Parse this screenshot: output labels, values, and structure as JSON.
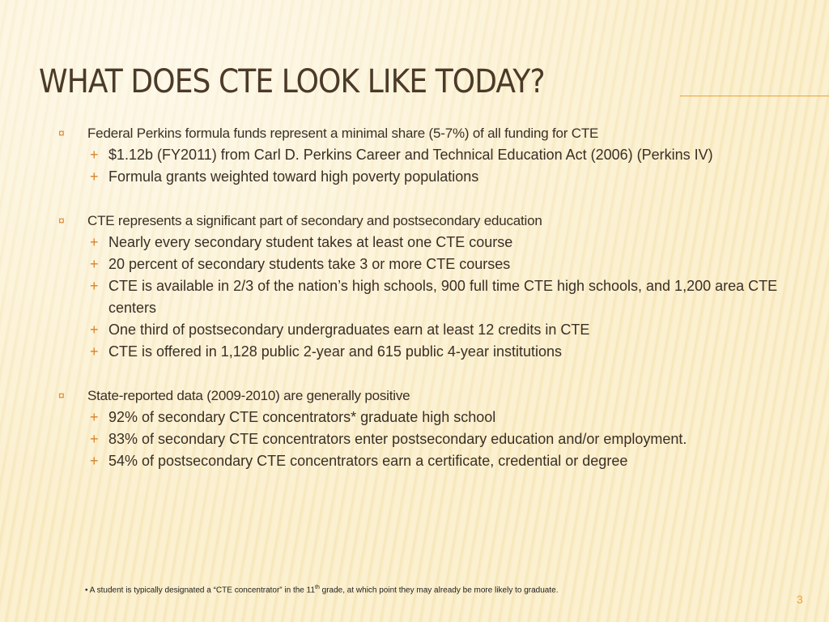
{
  "title": "WHAT DOES CTE LOOK LIKE TODAY?",
  "sections": [
    {
      "heading": "Federal  Perkins formula funds represent a minimal share (5-7%) of all funding for CTE",
      "items": [
        "$1.12b (FY2011) from Carl D. Perkins Career and Technical Education Act (2006) (Perkins IV)",
        "Formula grants weighted toward high poverty populations"
      ]
    },
    {
      "heading": "CTE represents a significant part of secondary and postsecondary education",
      "items": [
        "Nearly every secondary student takes at least one CTE course",
        "20 percent of secondary students take 3 or more CTE courses",
        "CTE is available in 2/3 of the nation’s high schools, 900 full time CTE high schools, and 1,200 area CTE centers",
        "One third of postsecondary undergraduates earn at least 12 credits in CTE",
        "CTE is offered in 1,128 public 2-year and 615 public 4-year institutions"
      ]
    },
    {
      "heading": "State-reported data (2009-2010) are generally positive",
      "items": [
        "92% of secondary CTE concentrators* graduate high school",
        "83% of secondary CTE concentrators enter postsecondary education and/or employment.",
        "54% of postsecondary CTE concentrators earn a certificate, credential or degree"
      ]
    }
  ],
  "footnote": {
    "before": "A student is typically designated a “CTE concentrator” in the 11",
    "sup": "th",
    "after": " grade, at which point they may already be more likely to graduate."
  },
  "page_number": "3"
}
